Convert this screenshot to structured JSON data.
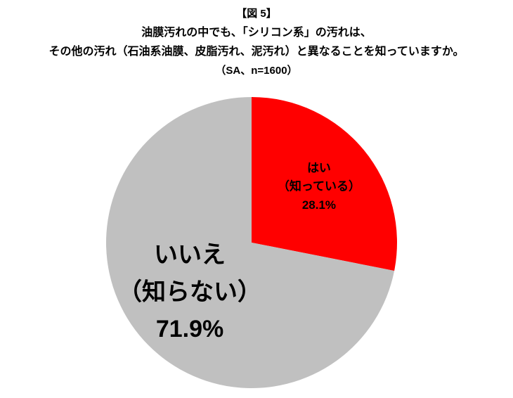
{
  "chart_data": {
    "type": "pie",
    "title": [
      "【図 5】",
      "油膜汚れの中でも、「シリコン系」の汚れは、",
      "その他の汚れ（石油系油膜、皮脂汚れ、泥汚れ）と異なることを知っていますか。",
      "（SA、n=1600）"
    ],
    "categories": [
      [
        "はい",
        "（知っている）"
      ],
      [
        "いいえ",
        "（知らない）"
      ]
    ],
    "values": [
      28.1,
      71.9
    ],
    "value_labels": [
      "28.1%",
      "71.9%"
    ],
    "colors": [
      "#ff0000",
      "#c0c0c0"
    ]
  }
}
